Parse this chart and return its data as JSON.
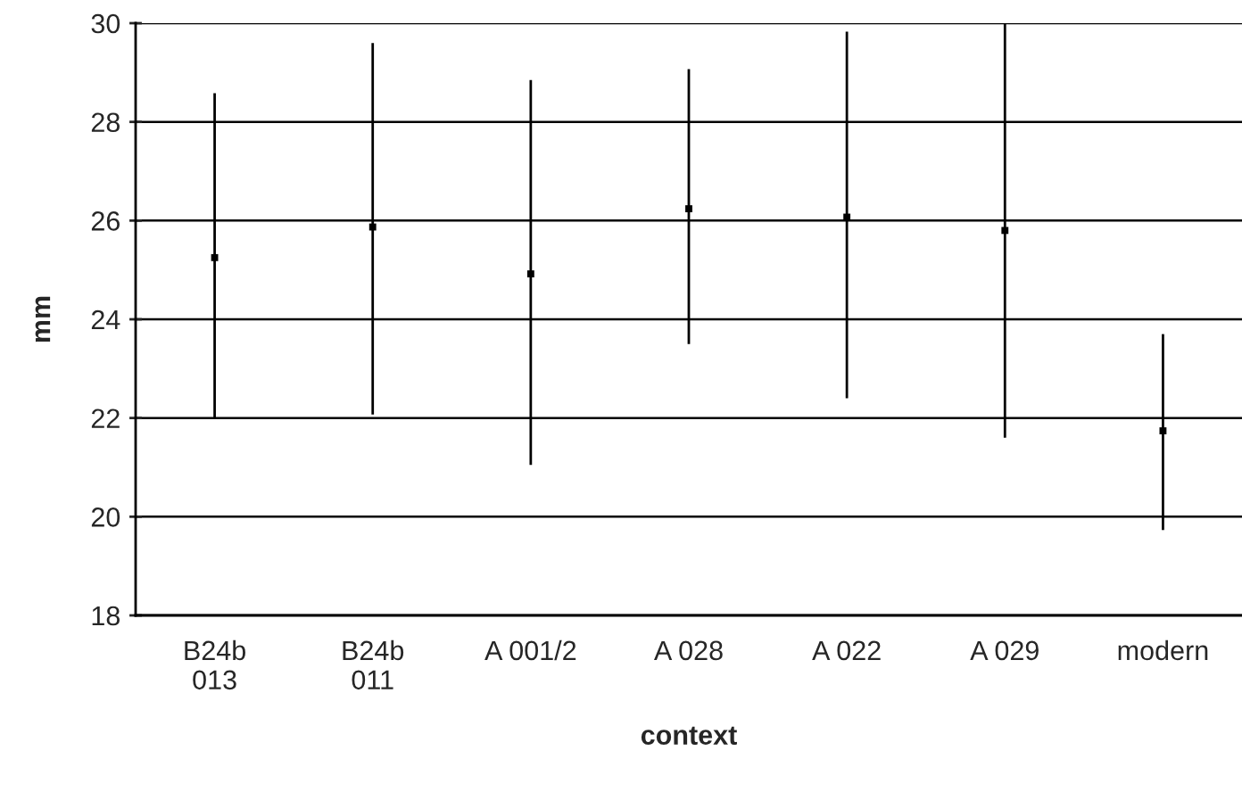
{
  "chart_data": {
    "type": "scatter",
    "xlabel": "context",
    "ylabel": "mm",
    "categories": [
      "B24b\n013",
      "B24b\n011",
      "A 001/2",
      "A 028",
      "A 022",
      "A 029",
      "modern"
    ],
    "values": [
      25.25,
      25.87,
      24.92,
      26.24,
      26.07,
      25.8,
      21.74
    ],
    "errors": [
      [
        22.0,
        28.58
      ],
      [
        22.07,
        29.6
      ],
      [
        21.05,
        28.85
      ],
      [
        23.5,
        29.07
      ],
      [
        22.4,
        29.83
      ],
      [
        21.6,
        30.0
      ],
      [
        19.73,
        23.7
      ]
    ],
    "color": "#000000",
    "marker": "square",
    "ylim": [
      18,
      30
    ],
    "yticks": [
      18,
      20,
      22,
      24,
      26,
      28,
      30
    ],
    "grid": "y"
  }
}
